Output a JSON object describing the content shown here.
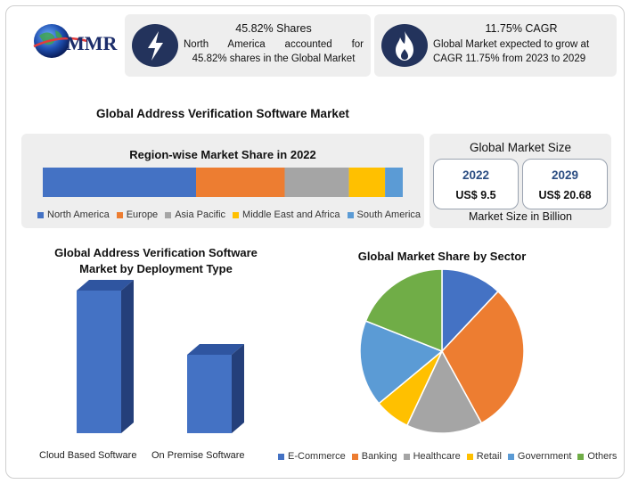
{
  "logo": {
    "text": "MMR"
  },
  "info_cards": [
    {
      "icon": "lightning-bolt-icon",
      "title": "45.82% Shares",
      "body_lines": [
        "North America accounted for",
        "45.82% shares in the Global Market"
      ]
    },
    {
      "icon": "flame-icon",
      "title": "11.75% CAGR",
      "body_lines": [
        "Global Market expected to grow at",
        "CAGR 11.75% from 2023 to 2029"
      ]
    }
  ],
  "main_title": "Global Address Verification Software Market",
  "market_size": {
    "title": "Global Market Size",
    "boxes": [
      {
        "year": "2022",
        "value": "US$ 9.5"
      },
      {
        "year": "2029",
        "value": "US$ 20.68"
      }
    ],
    "footer": "Market Size in Billion"
  },
  "colors": {
    "blue": "#4472c4",
    "orange": "#ed7d31",
    "gray": "#a5a5a5",
    "yellow": "#ffc000",
    "lightblue": "#5b9bd5",
    "green": "#70ad47",
    "icon_bg": "#23335c"
  },
  "chart_data": [
    {
      "type": "bar",
      "orientation": "horizontal-stacked",
      "title": "Region-wise Market Share in 2022",
      "categories": [
        "North America",
        "Europe",
        "Asia Pacific",
        "Middle East and Africa",
        "South America"
      ],
      "values": [
        45.82,
        26.5,
        19.2,
        10.8,
        5.3
      ],
      "colors": [
        "#4472c4",
        "#ed7d31",
        "#a5a5a5",
        "#ffc000",
        "#5b9bd5"
      ],
      "legend": "bottom"
    },
    {
      "type": "bar",
      "title_lines": [
        "Global Address Verification Software",
        "Market by Deployment Type"
      ],
      "categories": [
        "Cloud Based Software",
        "On Premise Software"
      ],
      "values": [
        100,
        55
      ],
      "colors": [
        "#4472c4",
        "#4472c4"
      ],
      "style": "3d-column"
    },
    {
      "type": "pie",
      "title": "Global Market Share by Sector",
      "categories": [
        "E-Commerce",
        "Banking",
        "Healthcare",
        "Retail",
        "Government",
        "Others"
      ],
      "values": [
        12,
        30,
        15,
        7,
        17,
        19
      ],
      "colors": [
        "#4472c4",
        "#ed7d31",
        "#a5a5a5",
        "#ffc000",
        "#5b9bd5",
        "#70ad47"
      ],
      "legend": "bottom"
    }
  ]
}
